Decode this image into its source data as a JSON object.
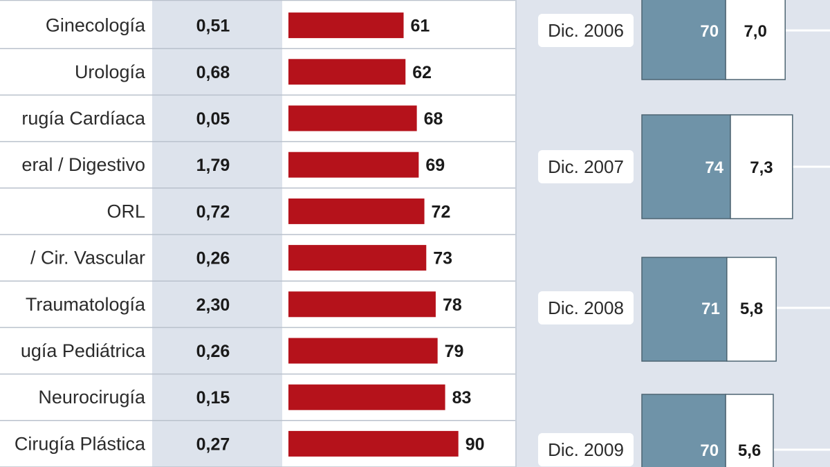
{
  "chart_data": [
    {
      "type": "bar",
      "categories": [
        "Ginecología",
        "Urología",
        "rugía Cardíaca",
        "eral / Digestivo",
        "ORL",
        "/ Cir. Vascular",
        "Traumatología",
        "ugía Pediátrica",
        "Neurocirugía",
        "Cirugía Plástica"
      ],
      "ratios": [
        "0,51",
        "0,68",
        "0,05",
        "1,79",
        "0,72",
        "0,26",
        "2,30",
        "0,26",
        "0,15",
        "0,27"
      ],
      "values": [
        61,
        62,
        68,
        69,
        72,
        73,
        78,
        79,
        83,
        90
      ],
      "bar_color": "#b5121b"
    },
    {
      "type": "bar",
      "categories": [
        "Dic. 2006",
        "Dic. 2007",
        "Dic. 2008",
        "Dic. 2009"
      ],
      "series": [
        {
          "values": [
            70,
            74,
            71,
            70
          ],
          "color": "#6f93a8"
        },
        {
          "values": [
            7.0,
            7.3,
            5.8,
            5.6
          ],
          "labels": [
            "7,0",
            "7,3",
            "5,8",
            "5,6"
          ],
          "color": "#ffffff"
        }
      ]
    }
  ]
}
